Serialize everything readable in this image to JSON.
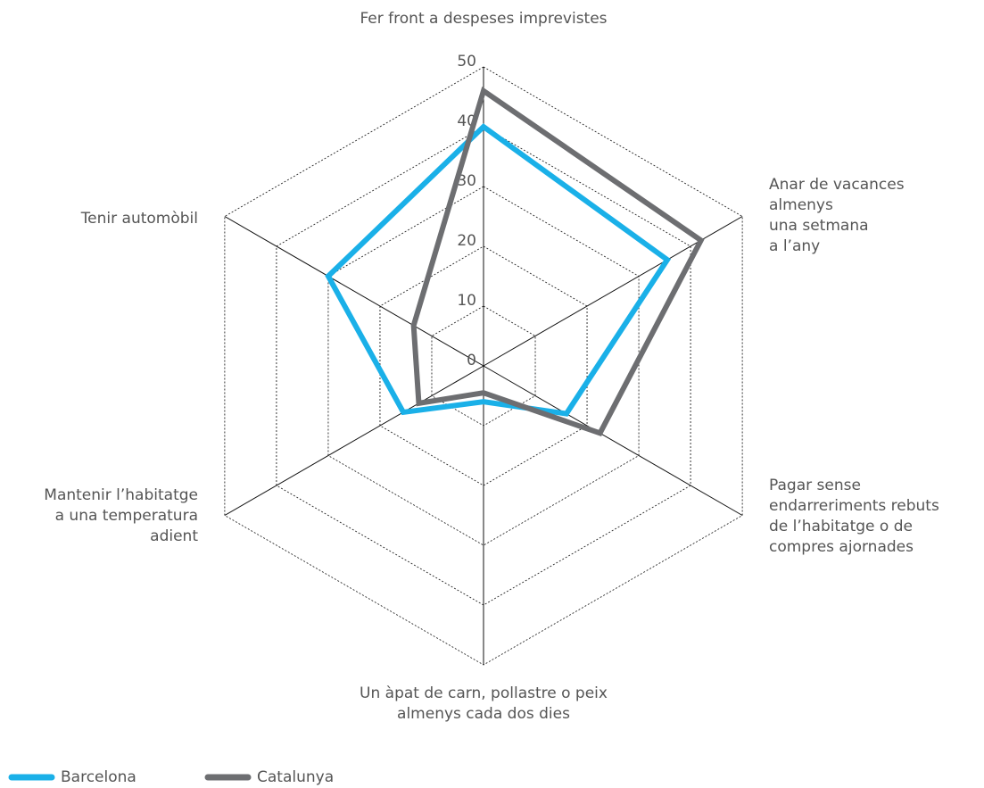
{
  "chart_data": {
    "type": "radar",
    "categories": [
      "Fer front a despeses imprevistes",
      "Anar de vacances\nalmenys\nuna setmana\na l’any",
      "Pagar sense\nendarreriments rebuts\nde l’habitatge o de\ncompres ajornades",
      "Un àpat de carn, pollastre o peix\nalmenys cada dos dies",
      "Mantenir l’habitatge\na una temperatura\nadient",
      "Tenir automòbil"
    ],
    "series": [
      {
        "name": "Barcelona",
        "color": "#1ab0e8",
        "values": [
          40,
          35.5,
          16,
          6,
          15.5,
          30
        ]
      },
      {
        "name": "Catalunya",
        "color": "#6d6e71",
        "values": [
          46,
          42,
          22.5,
          4.5,
          12.5,
          13.5
        ]
      }
    ],
    "ylim": [
      0,
      50
    ],
    "yticks": [
      0,
      10,
      20,
      30,
      40,
      50
    ],
    "grid": true,
    "legend": "bottom-left"
  }
}
